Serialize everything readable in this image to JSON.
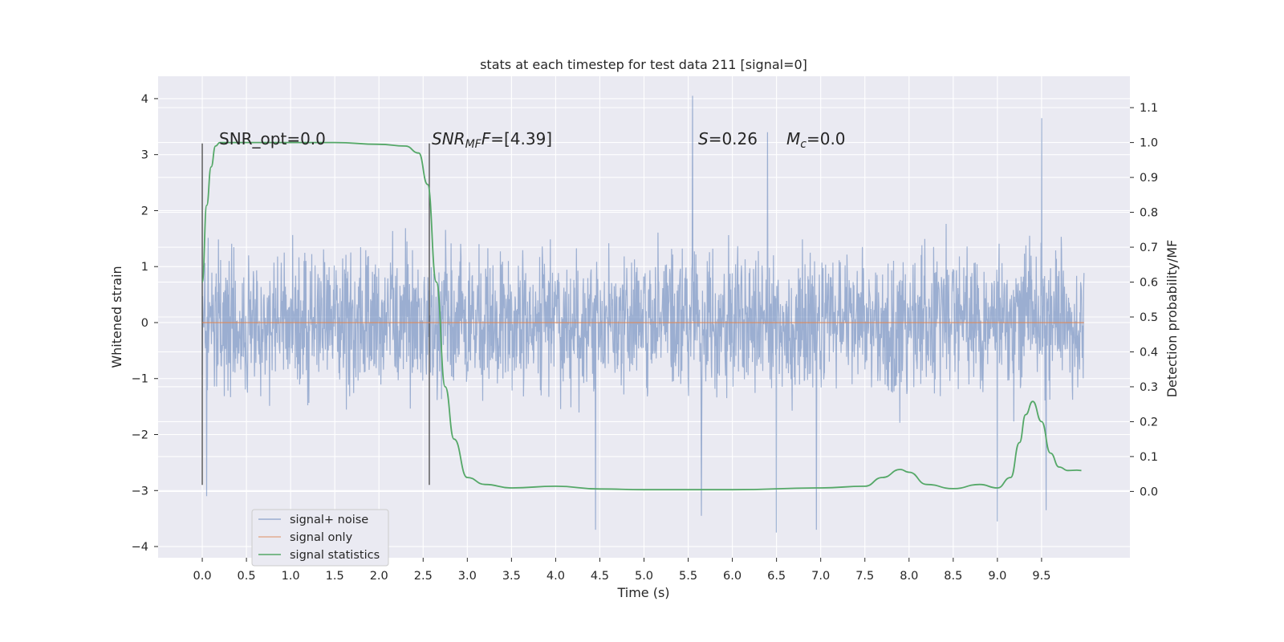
{
  "chart_data": {
    "type": "line",
    "title": "stats at each timestep for test data 211 [signal=0]",
    "xlabel": "Time (s)",
    "ylabel_left": "Whitened strain",
    "ylabel_right": "Detection probability/MF",
    "xlim": [
      -0.5,
      10.5
    ],
    "ylim_left": [
      -4.2,
      4.4
    ],
    "ylim_right": [
      -0.19,
      1.19
    ],
    "x_ticks": [
      0.0,
      0.5,
      1.0,
      1.5,
      2.0,
      2.5,
      3.0,
      3.5,
      4.0,
      4.5,
      5.0,
      5.5,
      6.0,
      6.5,
      7.0,
      7.5,
      8.0,
      8.5,
      9.0,
      9.5
    ],
    "x_tick_labels": [
      "0.0",
      "0.5",
      "1.0",
      "1.5",
      "2.0",
      "2.5",
      "3.0",
      "3.5",
      "4.0",
      "4.5",
      "5.0",
      "5.5",
      "6.0",
      "6.5",
      "7.0",
      "7.5",
      "8.0",
      "8.5",
      "9.0",
      "9.5"
    ],
    "y_left_ticks": [
      4,
      3,
      2,
      1,
      0,
      -1,
      -2,
      -3,
      -4
    ],
    "y_left_tick_labels": [
      "4",
      "3",
      "2",
      "1",
      "0",
      "−1",
      "−2",
      "−3",
      "−4"
    ],
    "y_right_ticks": [
      1.1,
      1.0,
      0.9,
      0.8,
      0.7,
      0.6,
      0.5,
      0.4,
      0.3,
      0.2,
      0.1,
      0.0
    ],
    "y_right_tick_labels": [
      "1.1",
      "1.0",
      "0.9",
      "0.8",
      "0.7",
      "0.6",
      "0.5",
      "0.4",
      "0.3",
      "0.2",
      "0.1",
      "0.0"
    ],
    "grid": true,
    "legend_position": "lower-left",
    "series": [
      {
        "name": "signal+ noise",
        "axis": "left",
        "color": "#4c72b0",
        "time_range": [
          0.0,
          9.98
        ],
        "typical_envelope": [
          -2.0,
          2.5
        ],
        "notable_peaks": [
          [
            5.55,
            4.05
          ],
          [
            9.5,
            3.65
          ],
          [
            6.4,
            3.4
          ],
          [
            5.65,
            3.3
          ],
          [
            9.55,
            -3.35
          ],
          [
            4.45,
            -3.7
          ],
          [
            6.5,
            -3.75
          ],
          [
            6.95,
            -3.7
          ],
          [
            5.65,
            -3.45
          ],
          [
            9.0,
            -3.55
          ],
          [
            0.05,
            -3.1
          ]
        ]
      },
      {
        "name": "signal only",
        "axis": "left",
        "color": "#dd8452",
        "x": [
          0.0,
          9.98
        ],
        "y": [
          0.0,
          0.0
        ]
      },
      {
        "name": "signal statistics",
        "axis": "right",
        "color": "#55a868",
        "x": [
          0.0,
          0.05,
          0.1,
          0.15,
          0.2,
          0.3,
          0.5,
          1.0,
          1.5,
          2.0,
          2.3,
          2.45,
          2.55,
          2.65,
          2.75,
          2.85,
          3.0,
          3.2,
          3.5,
          4.0,
          4.5,
          5.0,
          6.0,
          7.0,
          7.5,
          7.7,
          7.9,
          8.0,
          8.2,
          8.5,
          8.8,
          9.0,
          9.15,
          9.25,
          9.32,
          9.4,
          9.5,
          9.6,
          9.7,
          9.8,
          9.9,
          9.95
        ],
        "y": [
          0.6,
          0.82,
          0.93,
          0.99,
          1.0,
          1.0,
          1.0,
          1.0,
          1.0,
          0.995,
          0.99,
          0.97,
          0.88,
          0.6,
          0.3,
          0.15,
          0.04,
          0.02,
          0.01,
          0.015,
          0.007,
          0.005,
          0.005,
          0.01,
          0.015,
          0.04,
          0.063,
          0.055,
          0.02,
          0.008,
          0.02,
          0.01,
          0.04,
          0.14,
          0.22,
          0.258,
          0.2,
          0.11,
          0.07,
          0.06,
          0.061,
          0.06
        ]
      }
    ],
    "vertical_markers": [
      {
        "x": 0.0,
        "y_range": [
          -2.9,
          3.2
        ]
      },
      {
        "x": 2.57,
        "y_range": [
          -2.9,
          3.2
        ]
      }
    ],
    "annotations": {
      "snr_opt": "SNR_opt=0.0",
      "snr_mf_label": "SNR",
      "snr_mf_sub": "MF",
      "snr_mf_value": "=[4.39]",
      "s_label": "S",
      "s_value": "=0.26",
      "mc_label": "M",
      "mc_sub": "c",
      "mc_value": "=0.0"
    }
  }
}
